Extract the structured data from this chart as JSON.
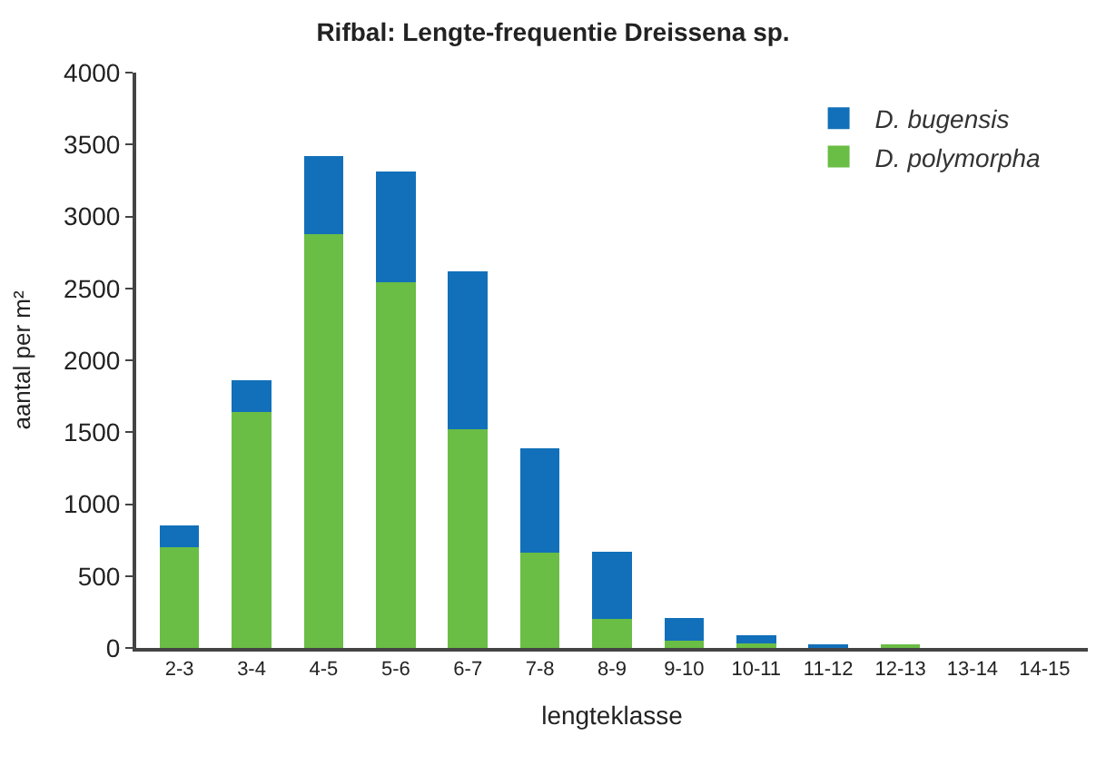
{
  "chart_data": {
    "type": "bar",
    "title": "Rifbal: Lengte-frequentie Dreissena sp.",
    "xlabel": "lengteklasse",
    "ylabel": "aantal per m²",
    "categories": [
      "2-3",
      "3-4",
      "4-5",
      "5-6",
      "6-7",
      "7-8",
      "8-9",
      "9-10",
      "10-11",
      "11-12",
      "12-13",
      "13-14",
      "14-15"
    ],
    "stacked": true,
    "series": [
      {
        "name": "D. polymorpha",
        "color": "#6abd45",
        "values": [
          700,
          1640,
          2880,
          2540,
          1520,
          660,
          200,
          50,
          30,
          0,
          20,
          0,
          0
        ]
      },
      {
        "name": "D. bugensis",
        "color": "#1170b9",
        "values": [
          150,
          220,
          540,
          770,
          1100,
          730,
          470,
          160,
          60,
          20,
          0,
          0,
          0
        ]
      }
    ],
    "ylim": [
      0,
      4000
    ],
    "yticks": [
      0,
      500,
      1000,
      1500,
      2000,
      2500,
      3000,
      3500,
      4000
    ],
    "legend": "top right"
  }
}
